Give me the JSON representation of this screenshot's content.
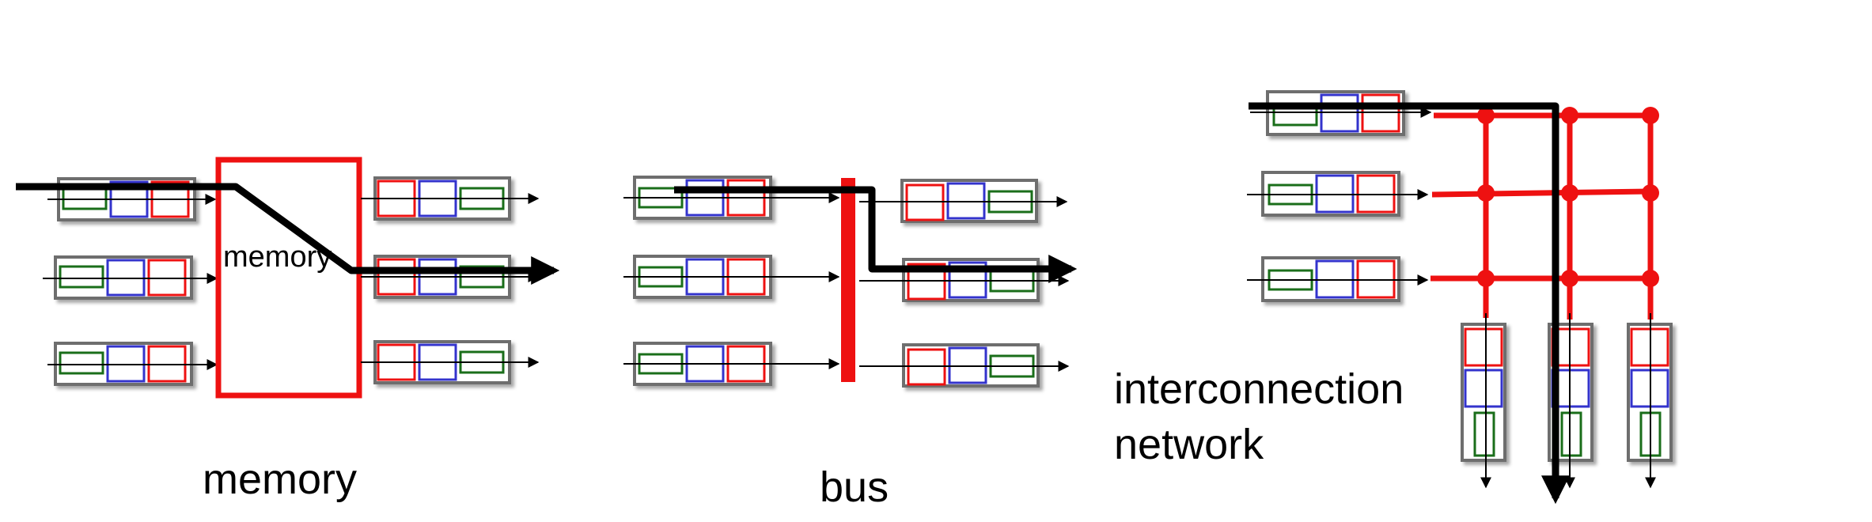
{
  "labels": {
    "memory_box": "memory",
    "memory_caption": "memory",
    "bus_caption": "bus",
    "interconnect_line1": "interconnection",
    "interconnect_line2": "network"
  },
  "colors": {
    "queue_border": "#6e6e6e",
    "red": "#ee1111",
    "blue": "#3333cc",
    "green": "#1a6e1a",
    "path": "#000000",
    "fabric": "#ee1111"
  },
  "queue_order": [
    "green",
    "blue",
    "red"
  ],
  "fabrics": [
    "memory",
    "bus",
    "crossbar"
  ]
}
